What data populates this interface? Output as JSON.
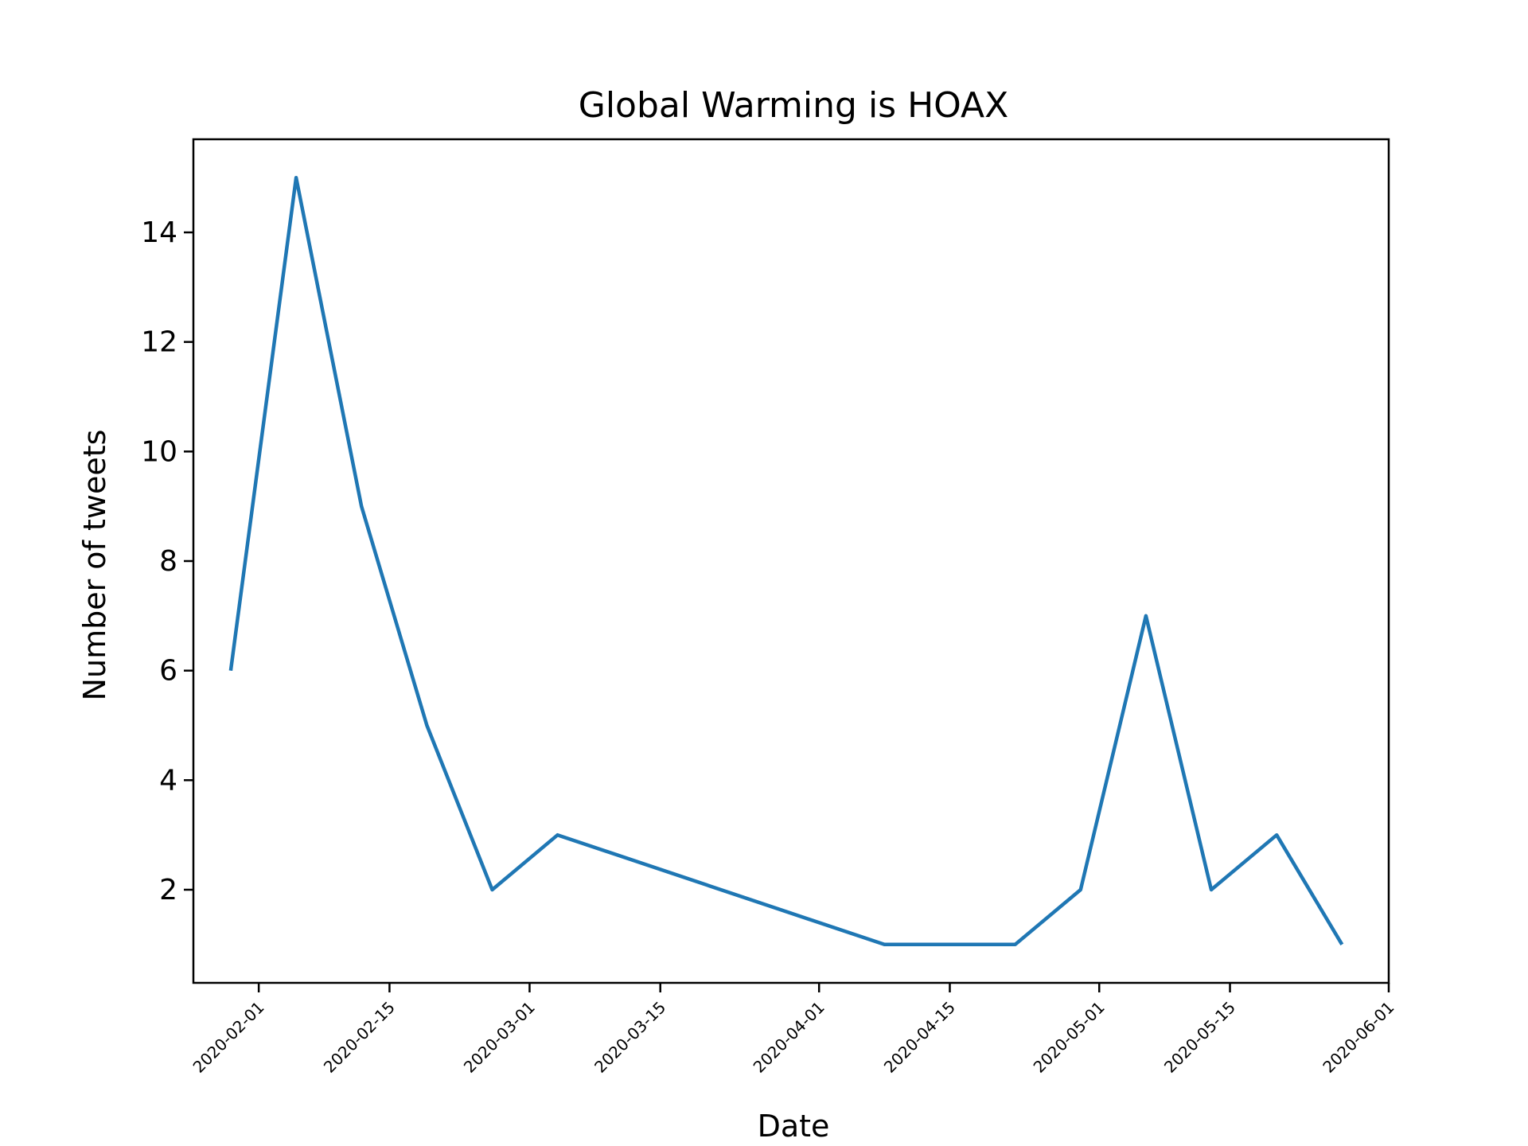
{
  "chart_data": {
    "type": "line",
    "title": "Global Warming is HOAX",
    "xlabel": "Date",
    "ylabel": "Number of tweets",
    "grid": false,
    "legend": "none",
    "xlim": [
      "2020-01-25",
      "2020-06-01"
    ],
    "ylim": [
      0.3,
      15.7
    ],
    "x_tick_labels": [
      "2020-02-01",
      "2020-02-15",
      "2020-03-01",
      "2020-03-15",
      "2020-04-01",
      "2020-04-15",
      "2020-05-01",
      "2020-05-15",
      "2020-06-01"
    ],
    "y_tick_labels": [
      "2",
      "4",
      "6",
      "8",
      "10",
      "12",
      "14"
    ],
    "series": [
      {
        "color": "#1f77b4",
        "x": [
          "2020-01-29",
          "2020-02-05",
          "2020-02-12",
          "2020-02-19",
          "2020-02-26",
          "2020-03-04",
          "2020-04-08",
          "2020-04-15",
          "2020-04-22",
          "2020-04-29",
          "2020-05-06",
          "2020-05-13",
          "2020-05-20",
          "2020-05-27"
        ],
        "y": [
          6,
          15,
          9,
          5,
          2,
          3,
          1,
          1,
          1,
          2,
          7,
          2,
          3,
          1
        ]
      }
    ]
  }
}
